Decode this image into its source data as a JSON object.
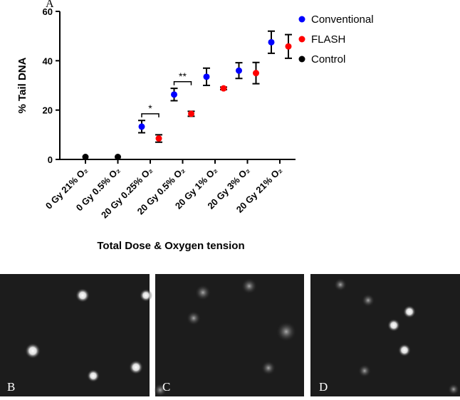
{
  "chart_data": {
    "type": "scatter",
    "panel_label": "A",
    "y_label": "% Tail DNA",
    "x_label": "Total Dose & Oxygen tension",
    "categories": [
      "0 Gy 21% O₂",
      "0 Gy 0.5% O₂",
      "20 Gy 0.25% O₂",
      "20 Gy 0.5% O₂",
      "20 Gy 1% O₂",
      "20 Gy 3% O₂",
      "20 Gy 21% O₂"
    ],
    "ylim": [
      0,
      60
    ],
    "yticks": [
      0,
      20,
      40,
      60
    ],
    "legend": "upper right",
    "series": [
      {
        "name": "Conventional",
        "color": "#0000ff",
        "values": [
          null,
          null,
          13.3,
          26.3,
          33.5,
          36,
          47.5
        ],
        "errors": [
          null,
          null,
          2.5,
          2.5,
          3.5,
          3.2,
          4.5
        ]
      },
      {
        "name": "FLASH",
        "color": "#ff0000",
        "values": [
          null,
          null,
          8.5,
          18.5,
          28.8,
          35,
          45.8
        ],
        "errors": [
          null,
          null,
          1.5,
          1,
          0.5,
          4.3,
          4.8
        ]
      },
      {
        "name": "Control",
        "color": "#000000",
        "values": [
          1,
          1,
          null,
          null,
          null,
          null,
          null
        ],
        "errors": [
          null,
          null,
          null,
          null,
          null,
          null,
          null
        ]
      }
    ],
    "annotations": [
      {
        "text": "*",
        "category": 2,
        "y": 18.5
      },
      {
        "text": "**",
        "category": 3,
        "y": 31.5
      }
    ]
  },
  "images": {
    "labels": [
      "B",
      "C",
      "D"
    ]
  }
}
